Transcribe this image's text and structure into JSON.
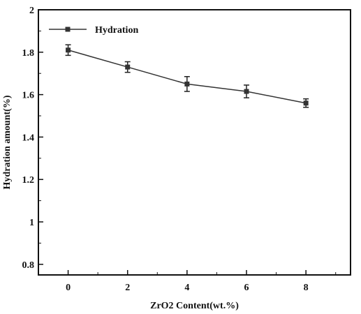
{
  "chart_data": {
    "type": "line",
    "xlabel": "ZrO2 Content(wt.%)",
    "ylabel": "Hydration amount(%)",
    "xlim": [
      -1,
      9.5
    ],
    "ylim": [
      0.75,
      2.0
    ],
    "x_ticks": [
      0,
      2,
      4,
      6,
      8
    ],
    "x_tick_labels": [
      "0",
      "2",
      "4",
      "6",
      "8"
    ],
    "y_ticks": [
      0.8,
      1.0,
      1.2,
      1.4,
      1.6,
      1.8,
      2.0
    ],
    "y_tick_labels": [
      "0.8",
      "1",
      "1.2",
      "1.4",
      "1.6",
      "1.8",
      "2"
    ],
    "legend_position": "top-left",
    "grid": false,
    "series": [
      {
        "name": "Hydration",
        "color": "#333333",
        "marker": "square",
        "x": [
          0,
          2,
          4,
          6,
          8
        ],
        "y": [
          1.81,
          1.73,
          1.65,
          1.615,
          1.56
        ],
        "error": [
          0.025,
          0.025,
          0.035,
          0.03,
          0.02
        ]
      }
    ]
  }
}
